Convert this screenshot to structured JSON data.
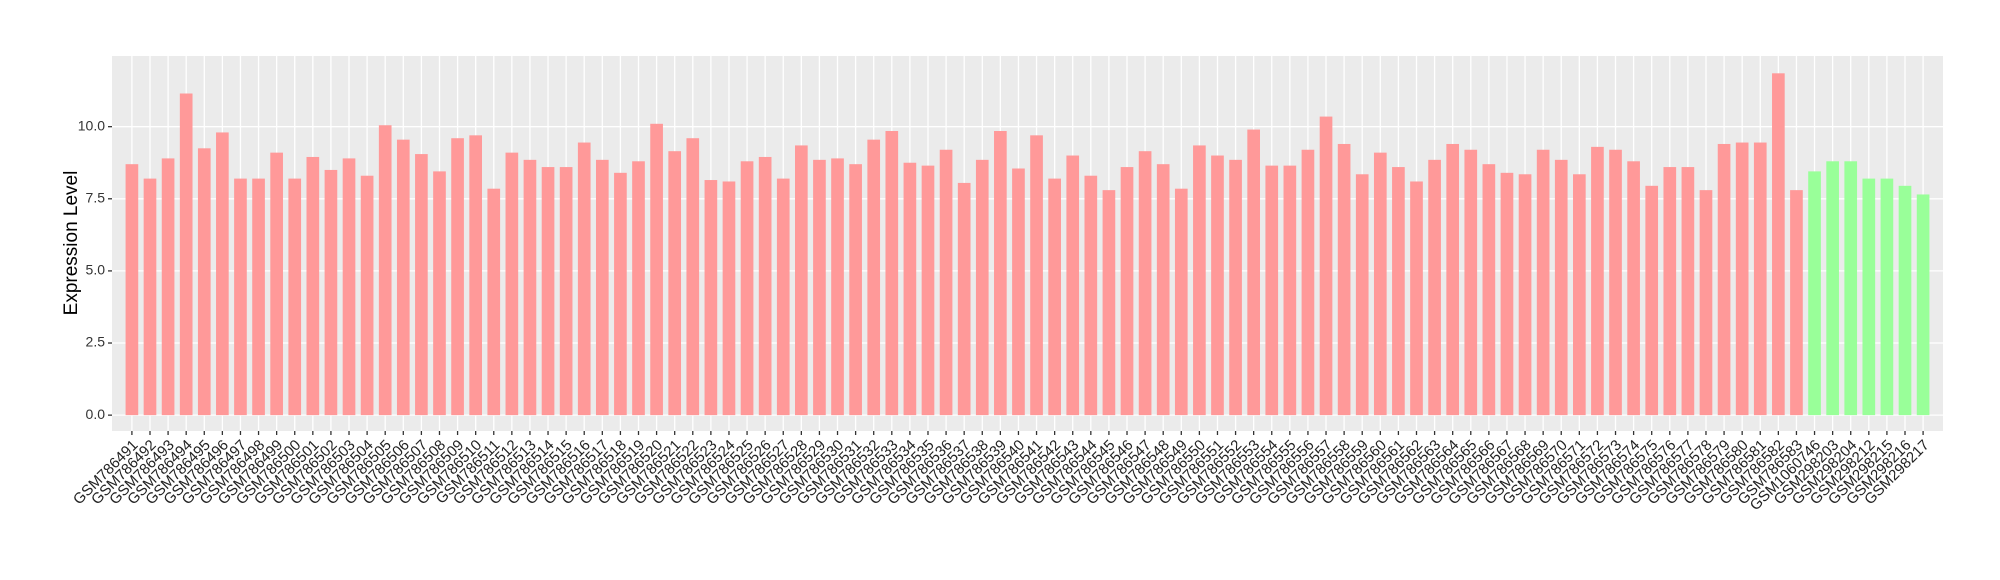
{
  "chart_data": {
    "type": "bar",
    "y_label": "Expression Level",
    "categories": [
      "GSM786491",
      "GSM786492",
      "GSM786493",
      "GSM786494",
      "GSM786495",
      "GSM786496",
      "GSM786497",
      "GSM786498",
      "GSM786499",
      "GSM786500",
      "GSM786501",
      "GSM786502",
      "GSM786503",
      "GSM786504",
      "GSM786505",
      "GSM786506",
      "GSM786507",
      "GSM786508",
      "GSM786509",
      "GSM786510",
      "GSM786511",
      "GSM786512",
      "GSM786513",
      "GSM786514",
      "GSM786515",
      "GSM786516",
      "GSM786517",
      "GSM786518",
      "GSM786519",
      "GSM786520",
      "GSM786521",
      "GSM786522",
      "GSM786523",
      "GSM786524",
      "GSM786525",
      "GSM786526",
      "GSM786527",
      "GSM786528",
      "GSM786529",
      "GSM786530",
      "GSM786531",
      "GSM786532",
      "GSM786533",
      "GSM786534",
      "GSM786535",
      "GSM786536",
      "GSM786537",
      "GSM786538",
      "GSM786539",
      "GSM786540",
      "GSM786541",
      "GSM786542",
      "GSM786543",
      "GSM786544",
      "GSM786545",
      "GSM786546",
      "GSM786547",
      "GSM786548",
      "GSM786549",
      "GSM786550",
      "GSM786551",
      "GSM786552",
      "GSM786553",
      "GSM786554",
      "GSM786555",
      "GSM786556",
      "GSM786557",
      "GSM786558",
      "GSM786559",
      "GSM786560",
      "GSM786561",
      "GSM786562",
      "GSM786563",
      "GSM786564",
      "GSM786565",
      "GSM786566",
      "GSM786567",
      "GSM786568",
      "GSM786569",
      "GSM786570",
      "GSM786571",
      "GSM786572",
      "GSM786573",
      "GSM786574",
      "GSM786575",
      "GSM786576",
      "GSM786577",
      "GSM786578",
      "GSM786579",
      "GSM786580",
      "GSM786581",
      "GSM786582",
      "GSM786583",
      "GSM1060746",
      "GSM298203",
      "GSM298204",
      "GSM298212",
      "GSM298215",
      "GSM298216",
      "GSM298217"
    ],
    "values": [
      8.7,
      8.2,
      8.9,
      11.15,
      9.25,
      9.8,
      8.2,
      8.2,
      9.1,
      8.2,
      8.95,
      8.5,
      8.9,
      8.3,
      10.05,
      9.55,
      9.05,
      8.45,
      9.6,
      9.7,
      7.85,
      9.1,
      8.85,
      8.6,
      8.6,
      9.45,
      8.85,
      8.4,
      8.8,
      10.1,
      9.15,
      9.6,
      8.15,
      8.1,
      8.8,
      8.95,
      8.2,
      9.35,
      8.85,
      8.9,
      8.7,
      9.55,
      9.85,
      8.75,
      8.65,
      9.2,
      8.05,
      8.85,
      9.85,
      8.55,
      9.7,
      8.2,
      9.0,
      8.3,
      7.8,
      8.6,
      9.15,
      8.7,
      7.85,
      9.35,
      9.0,
      8.85,
      9.9,
      8.65,
      8.65,
      9.2,
      10.35,
      9.4,
      8.35,
      9.1,
      8.6,
      8.1,
      8.85,
      9.4,
      9.2,
      8.7,
      8.4,
      8.35,
      9.2,
      8.85,
      8.35,
      9.3,
      9.2,
      8.8,
      7.95,
      8.6,
      8.6,
      7.8,
      9.4,
      9.45,
      9.45,
      11.85,
      7.8,
      8.45,
      8.8,
      8.8,
      8.2,
      8.2,
      7.95,
      7.65
    ],
    "colors": [
      "#ff9999",
      "#ff9999",
      "#ff9999",
      "#ff9999",
      "#ff9999",
      "#ff9999",
      "#ff9999",
      "#ff9999",
      "#ff9999",
      "#ff9999",
      "#ff9999",
      "#ff9999",
      "#ff9999",
      "#ff9999",
      "#ff9999",
      "#ff9999",
      "#ff9999",
      "#ff9999",
      "#ff9999",
      "#ff9999",
      "#ff9999",
      "#ff9999",
      "#ff9999",
      "#ff9999",
      "#ff9999",
      "#ff9999",
      "#ff9999",
      "#ff9999",
      "#ff9999",
      "#ff9999",
      "#ff9999",
      "#ff9999",
      "#ff9999",
      "#ff9999",
      "#ff9999",
      "#ff9999",
      "#ff9999",
      "#ff9999",
      "#ff9999",
      "#ff9999",
      "#ff9999",
      "#ff9999",
      "#ff9999",
      "#ff9999",
      "#ff9999",
      "#ff9999",
      "#ff9999",
      "#ff9999",
      "#ff9999",
      "#ff9999",
      "#ff9999",
      "#ff9999",
      "#ff9999",
      "#ff9999",
      "#ff9999",
      "#ff9999",
      "#ff9999",
      "#ff9999",
      "#ff9999",
      "#ff9999",
      "#ff9999",
      "#ff9999",
      "#ff9999",
      "#ff9999",
      "#ff9999",
      "#ff9999",
      "#ff9999",
      "#ff9999",
      "#ff9999",
      "#ff9999",
      "#ff9999",
      "#ff9999",
      "#ff9999",
      "#ff9999",
      "#ff9999",
      "#ff9999",
      "#ff9999",
      "#ff9999",
      "#ff9999",
      "#ff9999",
      "#ff9999",
      "#ff9999",
      "#ff9999",
      "#ff9999",
      "#ff9999",
      "#ff9999",
      "#ff9999",
      "#ff9999",
      "#ff9999",
      "#ff9999",
      "#ff9999",
      "#ff9999",
      "#ff9999",
      "#99ff99",
      "#99ff99",
      "#99ff99",
      "#99ff99",
      "#99ff99",
      "#99ff99",
      "#99ff99"
    ],
    "ylim": [
      -0.55,
      12.45
    ],
    "yticks": [
      {
        "value": 0,
        "label": "0.0"
      },
      {
        "value": 2.5,
        "label": "2.5"
      },
      {
        "value": 5,
        "label": "5.0"
      },
      {
        "value": 7.5,
        "label": "7.5"
      },
      {
        "value": 10,
        "label": "10.0"
      }
    ],
    "grid": true
  }
}
